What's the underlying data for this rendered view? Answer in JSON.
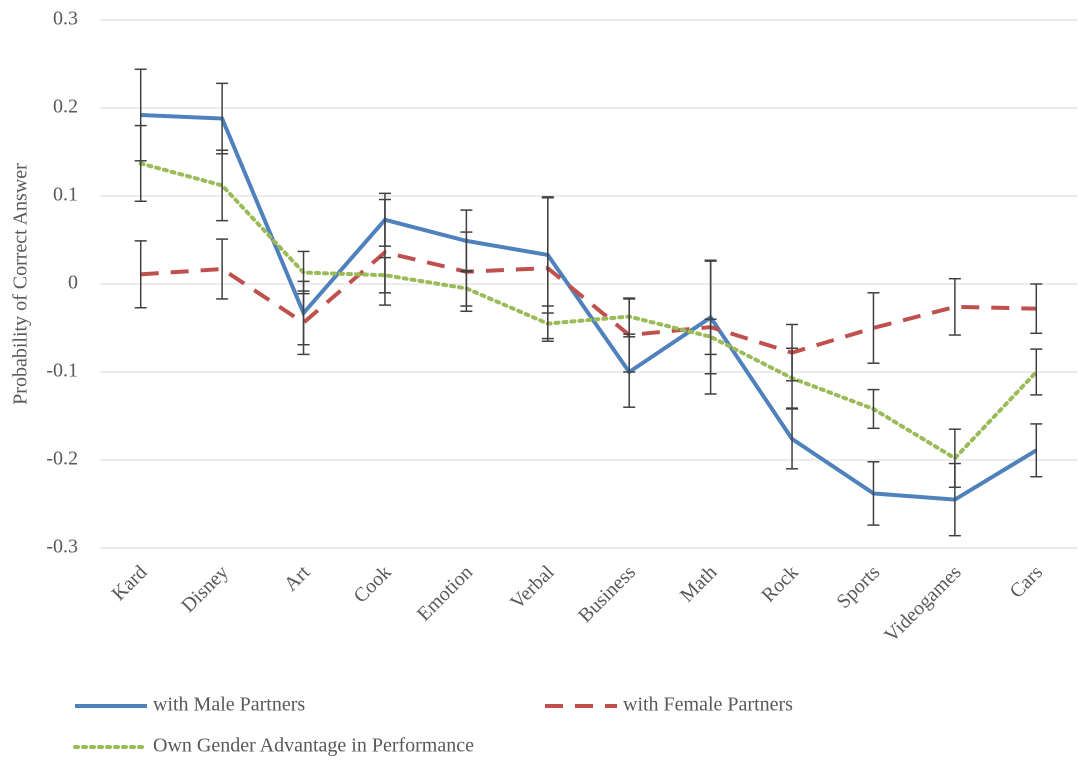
{
  "chart_data": {
    "type": "line",
    "y_label": "Probability of Correct Answer",
    "categories": [
      "Kard",
      "Disney",
      "Art",
      "Cook",
      "Emotion",
      "Verbal",
      "Business",
      "Math",
      "Rock",
      "Sports",
      "Videogames",
      "Cars"
    ],
    "series": [
      {
        "name": "with Male Partners",
        "color": "#4f81bd",
        "dash": "solid",
        "values": [
          0.192,
          0.188,
          -0.033,
          0.073,
          0.049,
          0.033,
          -0.1,
          -0.038,
          -0.176,
          -0.238,
          -0.245,
          -0.189
        ],
        "errors": [
          0.052,
          0.04,
          0.036,
          0.03,
          0.035,
          0.066,
          0.04,
          0.064,
          0.034,
          0.036,
          0.041,
          0.03
        ]
      },
      {
        "name": "with Female Partners",
        "color": "#c0504d",
        "dash": "dashed",
        "values": [
          0.011,
          0.017,
          -0.044,
          0.036,
          0.014,
          0.018,
          -0.058,
          -0.049,
          -0.078,
          -0.05,
          -0.026,
          -0.028
        ],
        "errors": [
          0.038,
          0.034,
          0.036,
          0.06,
          0.045,
          0.08,
          0.042,
          0.076,
          0.032,
          0.04,
          0.032,
          0.028
        ]
      },
      {
        "name": "Own Gender Advantage in Performance",
        "color": "#9bbb59",
        "dash": "dotted",
        "values": [
          0.137,
          0.112,
          0.013,
          0.01,
          -0.005,
          -0.045,
          -0.037,
          -0.06,
          -0.107,
          -0.142,
          -0.198,
          -0.1
        ],
        "errors": [
          0.043,
          0.04,
          0.024,
          0.02,
          0.02,
          0.02,
          0.02,
          0.02,
          0.034,
          0.022,
          0.033,
          0.026
        ]
      }
    ],
    "ylim": [
      -0.3,
      0.3
    ],
    "yticks": [
      -0.3,
      -0.2,
      -0.1,
      0,
      0.1,
      0.2,
      0.3
    ],
    "grid": true
  }
}
